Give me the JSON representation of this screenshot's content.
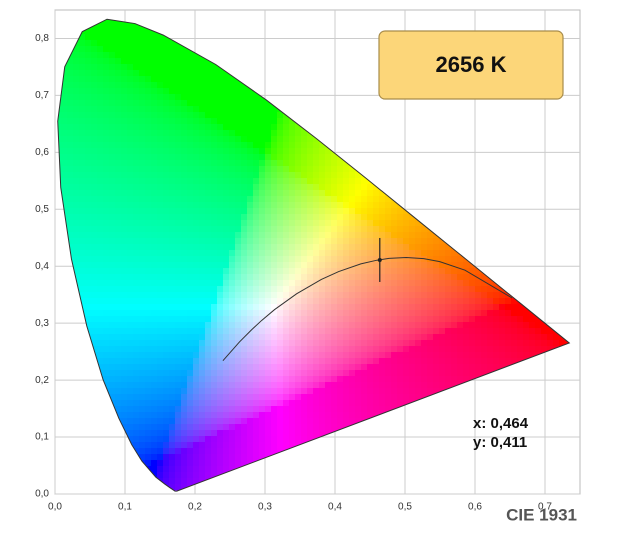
{
  "chart_data": {
    "type": "chromaticity",
    "xlim": [
      0,
      0.75
    ],
    "ylim": [
      0,
      0.85
    ],
    "xticks": [
      {
        "value": 0,
        "label": "0,0"
      },
      {
        "value": 0.1,
        "label": "0,1"
      },
      {
        "value": 0.2,
        "label": "0,2"
      },
      {
        "value": 0.3,
        "label": "0,3"
      },
      {
        "value": 0.4,
        "label": "0,4"
      },
      {
        "value": 0.5,
        "label": "0,5"
      },
      {
        "value": 0.6,
        "label": "0,6"
      },
      {
        "value": 0.7,
        "label": "0,7"
      }
    ],
    "yticks": [
      {
        "value": 0,
        "label": "0,0"
      },
      {
        "value": 0.1,
        "label": "0,1"
      },
      {
        "value": 0.2,
        "label": "0,2"
      },
      {
        "value": 0.3,
        "label": "0,3"
      },
      {
        "value": 0.4,
        "label": "0,4"
      },
      {
        "value": 0.5,
        "label": "0,5"
      },
      {
        "value": 0.6,
        "label": "0,6"
      },
      {
        "value": 0.7,
        "label": "0,7"
      },
      {
        "value": 0.8,
        "label": "0,8"
      }
    ],
    "grid": true,
    "spectral_locus": {
      "x": [
        0.1741,
        0.1714,
        0.1644,
        0.1566,
        0.144,
        0.1241,
        0.1096,
        0.0913,
        0.0687,
        0.0454,
        0.0235,
        0.0082,
        0.0039,
        0.0139,
        0.0389,
        0.0743,
        0.1142,
        0.1547,
        0.2296,
        0.3016,
        0.3731,
        0.4441,
        0.5125,
        0.5752,
        0.627,
        0.6658,
        0.6915,
        0.719,
        0.7347
      ],
      "y": [
        0.005,
        0.0051,
        0.0109,
        0.0177,
        0.0297,
        0.0578,
        0.0868,
        0.1327,
        0.2007,
        0.295,
        0.4127,
        0.5384,
        0.6548,
        0.7502,
        0.812,
        0.8338,
        0.8262,
        0.8059,
        0.7543,
        0.6923,
        0.6245,
        0.5547,
        0.4866,
        0.4242,
        0.3725,
        0.334,
        0.3083,
        0.2809,
        0.2653
      ]
    },
    "planckian_locus": {
      "x": [
        0.2399,
        0.2637,
        0.2807,
        0.2952,
        0.3135,
        0.3451,
        0.3805,
        0.4053,
        0.4369,
        0.4599,
        0.477,
        0.5018,
        0.5267,
        0.5496,
        0.5857,
        0.6528
      ],
      "y": [
        0.2342,
        0.2673,
        0.2883,
        0.3048,
        0.3237,
        0.3516,
        0.3768,
        0.3907,
        0.4041,
        0.4106,
        0.4137,
        0.4153,
        0.4133,
        0.4081,
        0.3931,
        0.3444
      ]
    },
    "marker": {
      "x": 0.464,
      "y": 0.411,
      "value_labels": [
        "x: 0,464",
        "y: 0,411"
      ]
    },
    "badge": "2656 K",
    "footer": "CIE 1931"
  }
}
